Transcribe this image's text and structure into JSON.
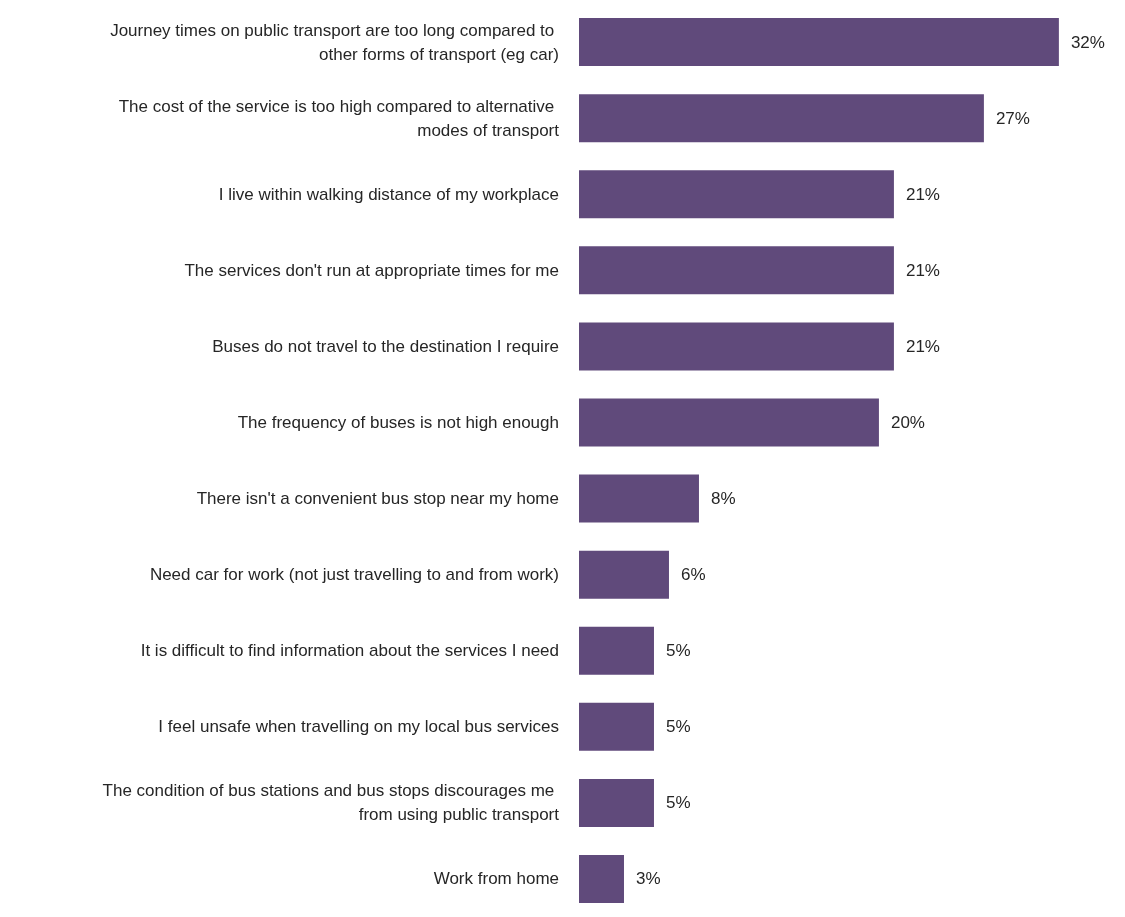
{
  "chart_data": {
    "type": "bar",
    "orientation": "horizontal",
    "categories": [
      "Journey times on public transport are too long compared to other forms of transport (eg car)",
      "The cost of the service is too high compared to alternative modes of transport",
      "I live within walking distance of my workplace",
      "The services don't run at appropriate times for me",
      "Buses do not travel to the destination I require",
      "The frequency of buses is not high enough",
      "There isn't a convenient bus stop near my home",
      "Need car for work (not just travelling to and from work)",
      "It is difficult to find information about the services I need",
      "I feel unsafe when travelling on my local bus services",
      "The condition of bus stations and bus stops discourages me from using public transport",
      "Work from home"
    ],
    "values": [
      32,
      27,
      21,
      21,
      21,
      20,
      8,
      6,
      5,
      5,
      5,
      3
    ],
    "value_labels": [
      "32%",
      "27%",
      "21%",
      "21%",
      "21%",
      "20%",
      "8%",
      "6%",
      "5%",
      "5%",
      "5%",
      "3%"
    ],
    "color": "#604a7b"
  }
}
